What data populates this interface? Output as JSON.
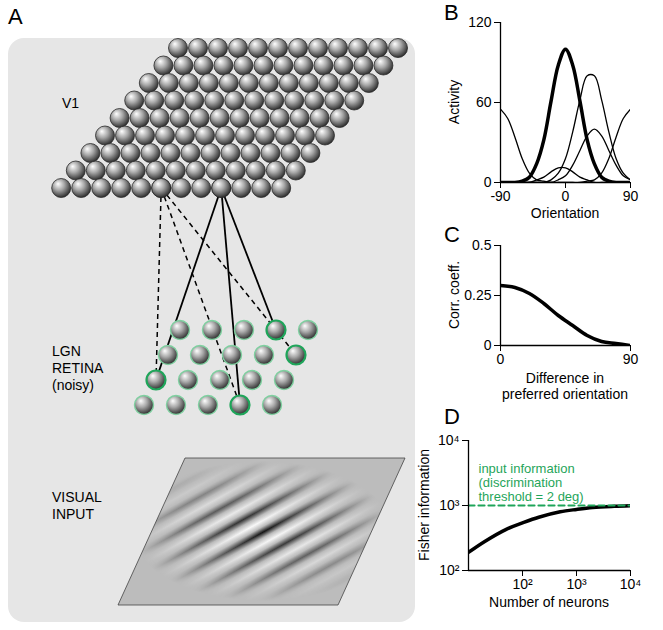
{
  "diagram": {
    "panel": "A",
    "labels": {
      "cortex": "V1",
      "input_layer": [
        "LGN",
        "RETINA",
        "(noisy)"
      ],
      "stimulus": [
        "VISUAL",
        "INPUT"
      ]
    }
  },
  "chart_data": [
    {
      "panel": "B",
      "type": "line",
      "color": "#000000",
      "x": [
        -90,
        -80,
        -70,
        -60,
        -50,
        -40,
        -30,
        -20,
        -10,
        0,
        10,
        20,
        30,
        40,
        50,
        60,
        70,
        80,
        90
      ],
      "series": [
        {
          "line_style": "thick",
          "values": [
            0,
            0,
            0,
            1,
            4,
            14,
            32,
            61,
            88,
            100,
            88,
            61,
            32,
            14,
            4,
            1,
            0,
            0,
            0
          ]
        },
        {
          "line_style": "solid",
          "values": [
            0,
            0,
            0,
            0,
            0,
            0,
            0,
            2,
            7,
            18,
            38,
            62,
            80,
            80,
            62,
            38,
            18,
            7,
            2
          ]
        },
        {
          "line_style": "solid",
          "values": [
            55,
            48,
            34,
            18,
            7,
            2,
            1,
            0,
            0,
            0,
            0,
            0,
            1,
            2,
            7,
            18,
            34,
            48,
            55
          ]
        },
        {
          "line_style": "solid",
          "values": [
            0,
            0,
            0,
            0,
            0,
            0,
            0,
            0,
            2,
            5,
            13,
            24,
            35,
            40,
            35,
            24,
            13,
            5,
            2
          ]
        },
        {
          "line_style": "solid",
          "values": [
            0,
            0,
            0,
            0,
            0,
            2,
            4,
            8,
            11,
            11,
            8,
            4,
            2,
            0,
            0,
            0,
            0,
            0,
            0
          ]
        }
      ],
      "xlim": [
        -90,
        90
      ],
      "xticks": [
        -90,
        0,
        90
      ],
      "ylim": [
        0,
        120
      ],
      "yticks": [
        0,
        60,
        120
      ],
      "x_label": "Orientation",
      "y_label": "Activity"
    },
    {
      "panel": "C",
      "type": "line",
      "color": "#000000",
      "x": [
        0,
        10,
        20,
        30,
        40,
        50,
        60,
        70,
        80,
        90
      ],
      "series": [
        {
          "line_style": "thick",
          "values": [
            0.3,
            0.29,
            0.26,
            0.21,
            0.15,
            0.1,
            0.05,
            0.02,
            0.01,
            0
          ]
        }
      ],
      "xlim": [
        0,
        90
      ],
      "xticks": [
        0,
        90
      ],
      "ylim": [
        0,
        0.5
      ],
      "yticks": [
        0,
        0.25,
        0.5
      ],
      "x_label": "Difference in preferred orientation",
      "y_label": "Corr. coeff."
    },
    {
      "panel": "D",
      "type": "line",
      "color": "#000000",
      "log": true,
      "series": [
        {
          "line_style": "thick",
          "color": "#000000",
          "x": [
            10,
            20,
            50,
            100,
            200,
            500,
            1000,
            2000,
            5000,
            10000
          ],
          "values": [
            190,
            280,
            430,
            540,
            660,
            800,
            870,
            930,
            970,
            990
          ]
        },
        {
          "name": "input information (discrimination threshold = 2 deg)",
          "line_style": "dashed",
          "color": "#1fa55a",
          "x": [
            10,
            10000
          ],
          "values": [
            1000,
            1000
          ]
        }
      ],
      "xlim": [
        10,
        10000
      ],
      "xticks": [
        {
          "value": 100,
          "label": "10²"
        },
        {
          "value": 1000,
          "label": "10³"
        },
        {
          "value": 10000,
          "label": "10⁴"
        }
      ],
      "ylim": [
        100,
        10000
      ],
      "yticks": [
        {
          "value": 100,
          "label": "10²"
        },
        {
          "value": 1000,
          "label": "10³"
        },
        {
          "value": 10000,
          "label": "10⁴"
        }
      ],
      "x_label": "Number of neurons",
      "y_label": "Fisher information"
    }
  ]
}
